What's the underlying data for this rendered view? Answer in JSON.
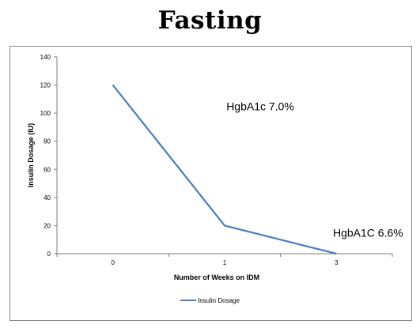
{
  "title": "Fasting",
  "chart_data": {
    "type": "line",
    "categories": [
      "0",
      "1",
      "3"
    ],
    "series": [
      {
        "name": "Insulin Dosage",
        "values": [
          120,
          20,
          0
        ],
        "color": "#4a7ebb"
      }
    ],
    "xlabel": "Number of Weeks on IDM",
    "ylabel": "Insulin Dosage (IU)",
    "ylim": [
      0,
      140
    ],
    "yticks": [
      0,
      20,
      40,
      60,
      80,
      100,
      120,
      140
    ],
    "grid": false,
    "legend": "bottom",
    "annotations": [
      {
        "text": "HgbA1c 7.0%",
        "category": "1",
        "y": 105
      },
      {
        "text": "HgbA1C 6.6%",
        "category": "3",
        "y": 15
      }
    ]
  }
}
